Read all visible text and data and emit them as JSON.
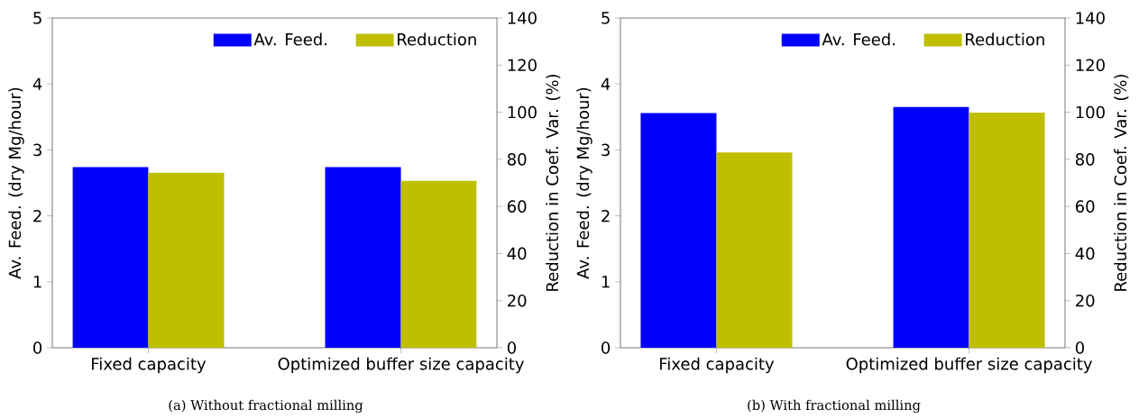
{
  "chart_data": [
    {
      "type": "bar",
      "categories": [
        "Fixed capacity",
        "Optimized buffer size capacity"
      ],
      "series": [
        {
          "name": "Av. Feed.",
          "color": "#0000ff",
          "values": [
            2.74,
            2.74
          ]
        },
        {
          "name": "Reduction",
          "color": "#bfbf00",
          "values": [
            74.4,
            70.9
          ],
          "axis": "y2"
        }
      ],
      "ylabel": "Av. Feed. (dry Mg/hour)",
      "y2label": "Reduction in Coef. Var. (%)",
      "ylim": [
        0,
        5
      ],
      "yticks": [
        0,
        1,
        2,
        3,
        4,
        5
      ],
      "y2lim": [
        0,
        140
      ],
      "y2ticks": [
        0,
        20,
        40,
        60,
        80,
        100,
        120,
        140
      ],
      "legend": "top right",
      "annotations": [
        "(a) Without fractional milling"
      ]
    },
    {
      "type": "bar",
      "categories": [
        "Fixed capacity",
        "Optimized buffer size capacity"
      ],
      "series": [
        {
          "name": "Av. Feed.",
          "color": "#0000ff",
          "values": [
            3.56,
            3.65
          ]
        },
        {
          "name": "Reduction",
          "color": "#bfbf00",
          "values": [
            82.9,
            99.8
          ],
          "axis": "y2"
        }
      ],
      "ylabel": "Av. Feed. (dry Mg/hour)",
      "y2label": "Reduction in Coef. Var. (%)",
      "ylim": [
        0,
        5
      ],
      "yticks": [
        0,
        1,
        2,
        3,
        4,
        5
      ],
      "y2lim": [
        0,
        140
      ],
      "y2ticks": [
        0,
        20,
        40,
        60,
        80,
        100,
        120,
        140
      ],
      "legend": "top right",
      "annotations": [
        "(b) With fractional milling"
      ]
    }
  ]
}
